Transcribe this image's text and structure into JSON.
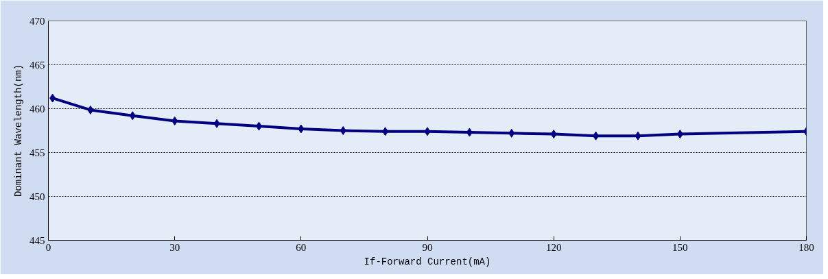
{
  "chart_data": {
    "type": "line",
    "xlabel": "If-Forward Current(mA)",
    "ylabel": "Dominant Wavelength(nm)",
    "x": [
      1,
      10,
      20,
      30,
      40,
      50,
      60,
      70,
      80,
      90,
      100,
      110,
      120,
      130,
      140,
      150,
      180
    ],
    "series": [
      {
        "color": "#000080",
        "values": [
          461.2,
          459.85,
          459.2,
          458.6,
          458.3,
          458.0,
          457.7,
          457.5,
          457.4,
          457.4,
          457.3,
          457.2,
          457.1,
          456.9,
          456.9,
          457.1,
          457.4
        ]
      }
    ],
    "xlim": [
      0,
      180
    ],
    "xticks": [
      0,
      30,
      60,
      90,
      120,
      150,
      180
    ],
    "ylim": [
      445,
      470
    ],
    "yticks": [
      445,
      450,
      455,
      460,
      465,
      470
    ],
    "grid": "y",
    "marker": "diamond",
    "line_style": "solid"
  }
}
